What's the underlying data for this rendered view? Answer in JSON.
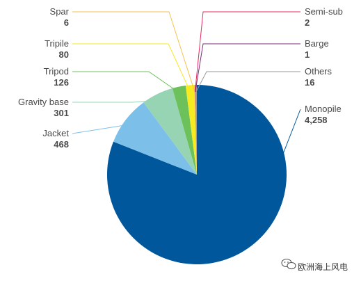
{
  "chart_data": {
    "type": "pie",
    "categories": [
      "Monopile",
      "Jacket",
      "Gravity base",
      "Tripod",
      "Tripile",
      "Spar",
      "Semi-sub",
      "Barge",
      "Others"
    ],
    "values": [
      4258,
      468,
      301,
      126,
      80,
      6,
      2,
      1,
      16
    ],
    "labels": [
      "4,258",
      "468",
      "301",
      "126",
      "80",
      "6",
      "2",
      "1",
      "16"
    ],
    "colors": [
      "#00579c",
      "#7cc0ea",
      "#97d4b4",
      "#6cc15a",
      "#f6ea21",
      "#f4c24e",
      "#e8285b",
      "#7a2a79",
      "#9a9a9a"
    ],
    "title": "",
    "legend": "callouts"
  },
  "watermark": {
    "text": "欧洲海上风电",
    "icon": "wechat-icon"
  }
}
